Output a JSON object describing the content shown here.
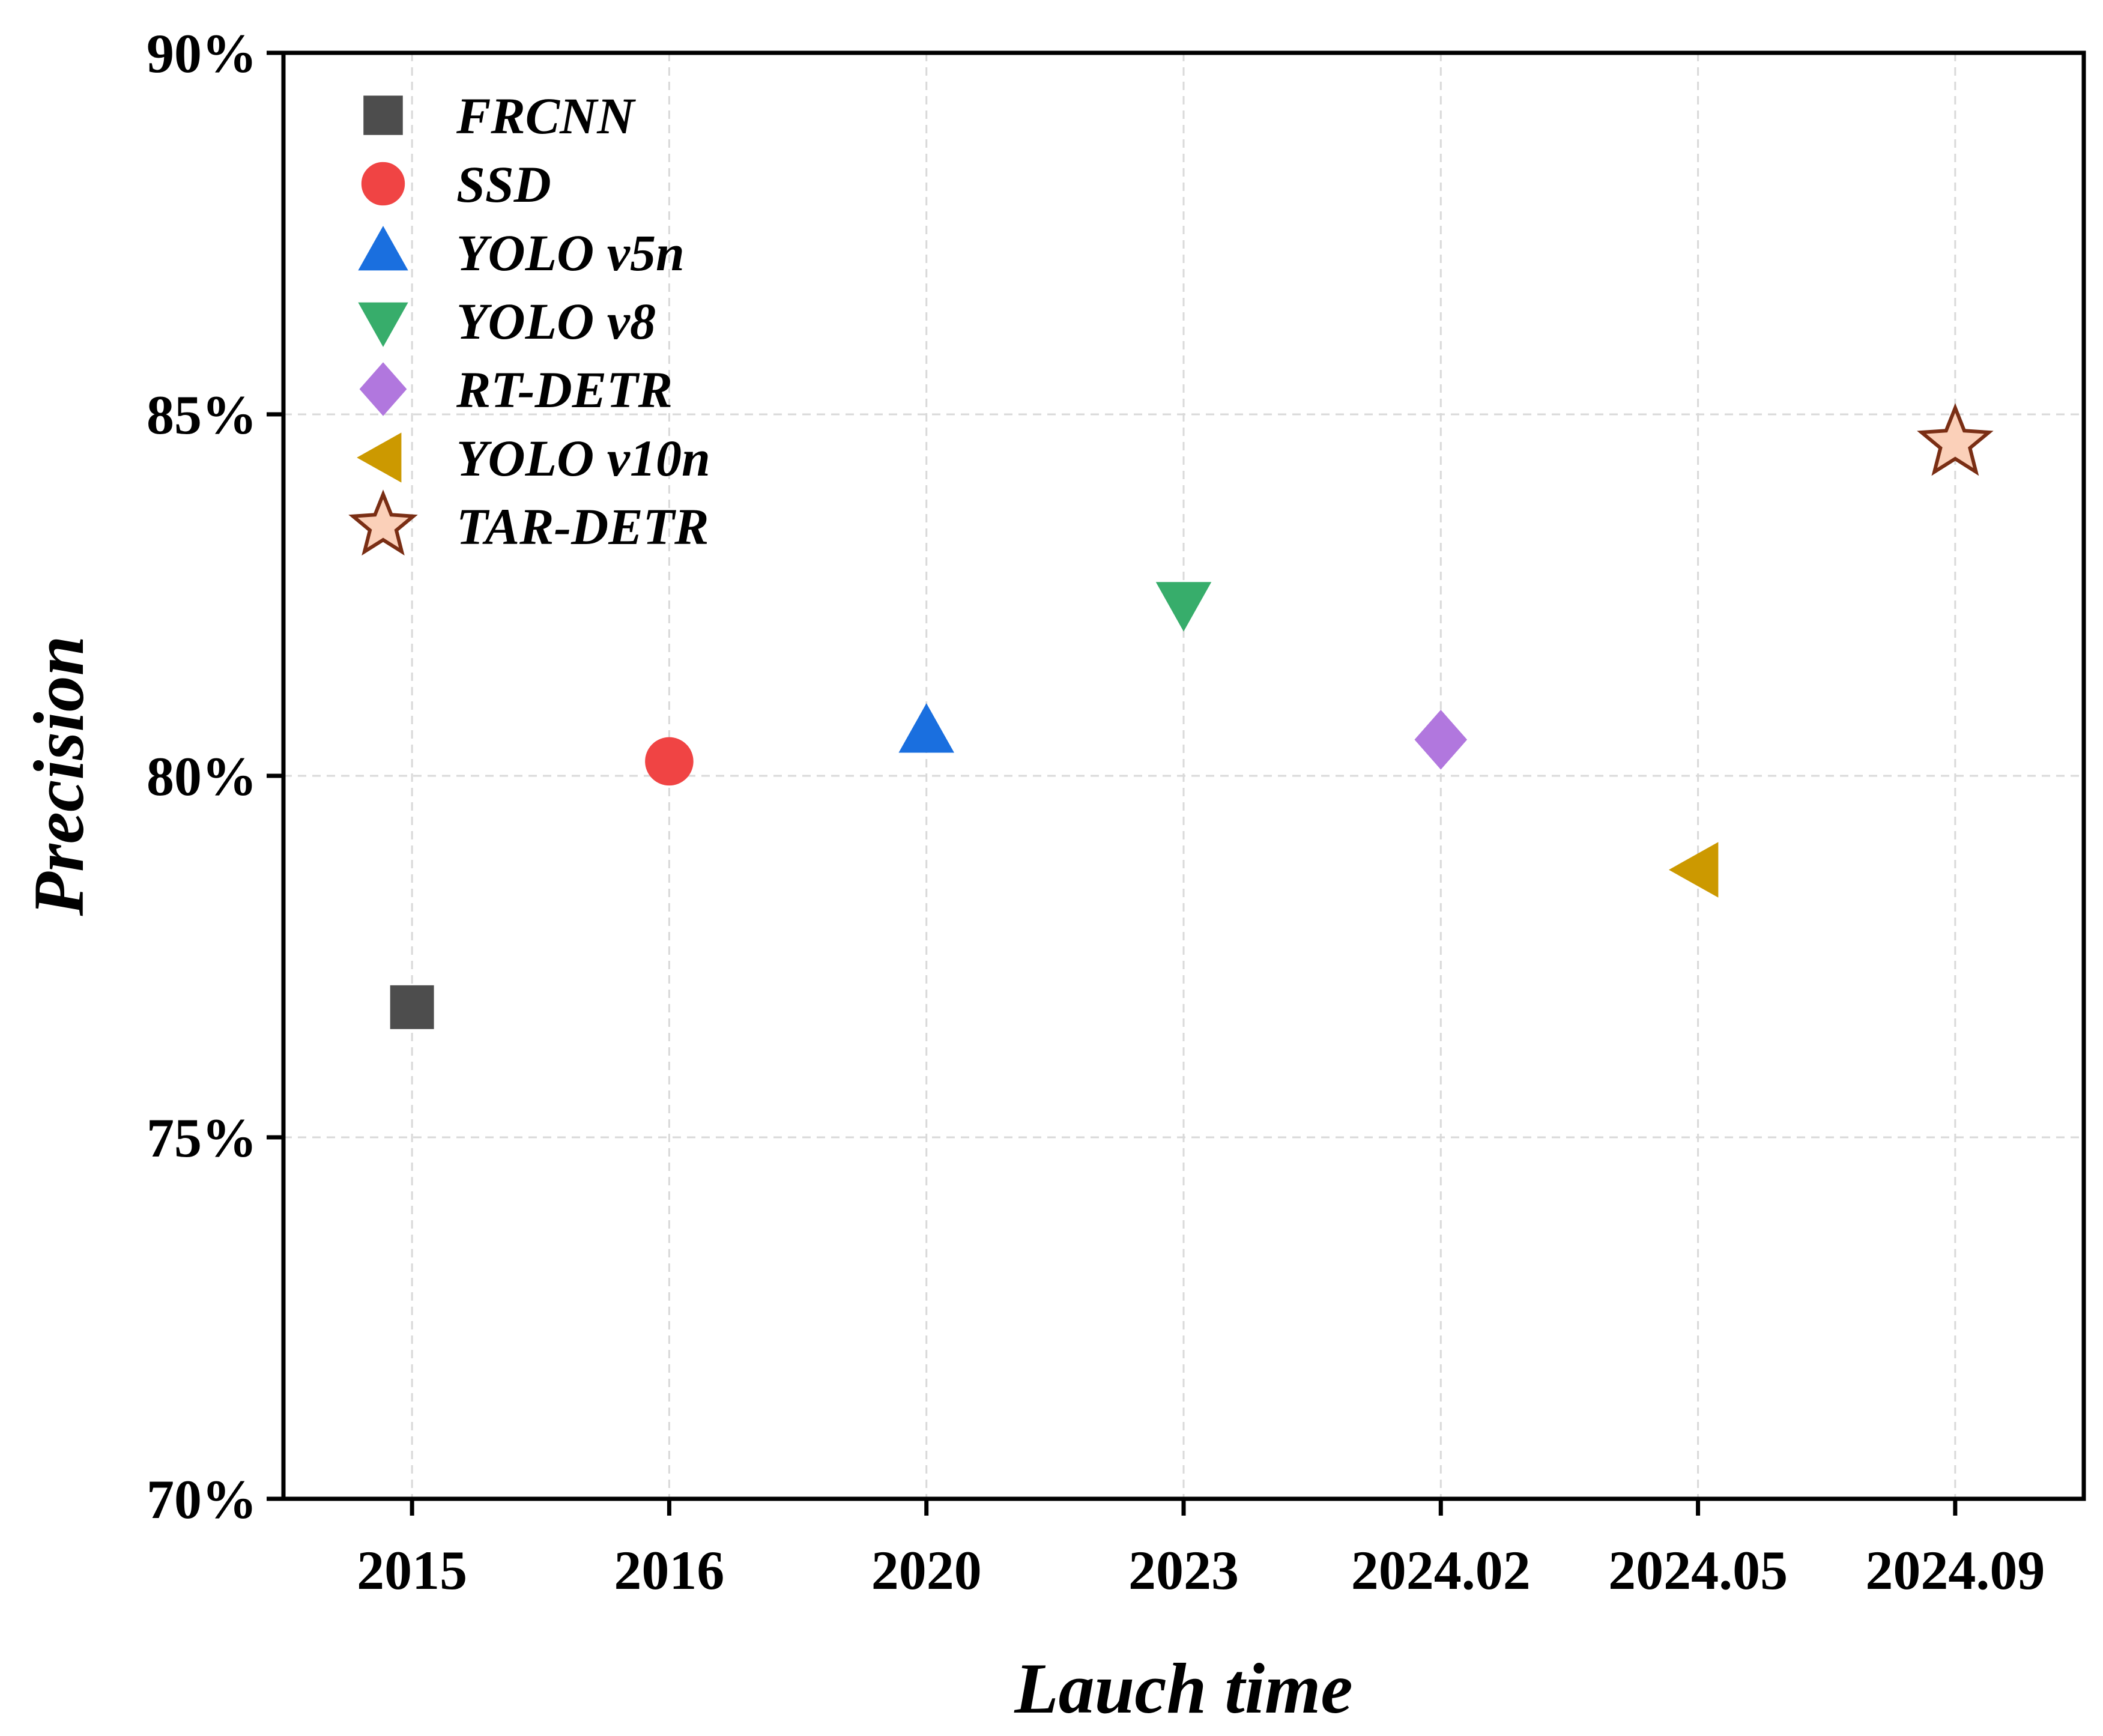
{
  "chart_data": {
    "type": "scatter",
    "title": "",
    "xlabel": "Lauch time",
    "ylabel": "Precision",
    "categories": [
      "2015",
      "2016",
      "2020",
      "2023",
      "2024.02",
      "2024.05",
      "2024.09"
    ],
    "ylim": [
      70,
      90
    ],
    "yticks": [
      70,
      75,
      80,
      85,
      90
    ],
    "ytick_labels": [
      "70%",
      "75%",
      "80%",
      "85%",
      "90%"
    ],
    "grid": true,
    "legend_position": "top-left",
    "series": [
      {
        "name": "FRCNN",
        "x": "2015",
        "value": 76.8,
        "marker": "square",
        "color": "#4d4d4d",
        "edge": "#4d4d4d"
      },
      {
        "name": "SSD",
        "x": "2016",
        "value": 80.2,
        "marker": "circle",
        "color": "#f04444",
        "edge": "#f04444"
      },
      {
        "name": "YOLO v5n",
        "x": "2020",
        "value": 80.6,
        "marker": "triangle-up",
        "color": "#1a6fdf",
        "edge": "#1a6fdf"
      },
      {
        "name": "YOLO v8",
        "x": "2023",
        "value": 82.4,
        "marker": "triangle-down",
        "color": "#37ad6b",
        "edge": "#37ad6b"
      },
      {
        "name": "RT-DETR",
        "x": "2024.02",
        "value": 80.5,
        "marker": "diamond",
        "color": "#b177de",
        "edge": "#b177de"
      },
      {
        "name": "YOLO v10n",
        "x": "2024.05",
        "value": 78.7,
        "marker": "triangle-left",
        "color": "#cc9900",
        "edge": "#cc9900"
      },
      {
        "name": "TAR-DETR",
        "x": "2024.09",
        "value": 84.6,
        "marker": "star",
        "color": "#fbd0b9",
        "edge": "#7a2e14"
      }
    ]
  }
}
